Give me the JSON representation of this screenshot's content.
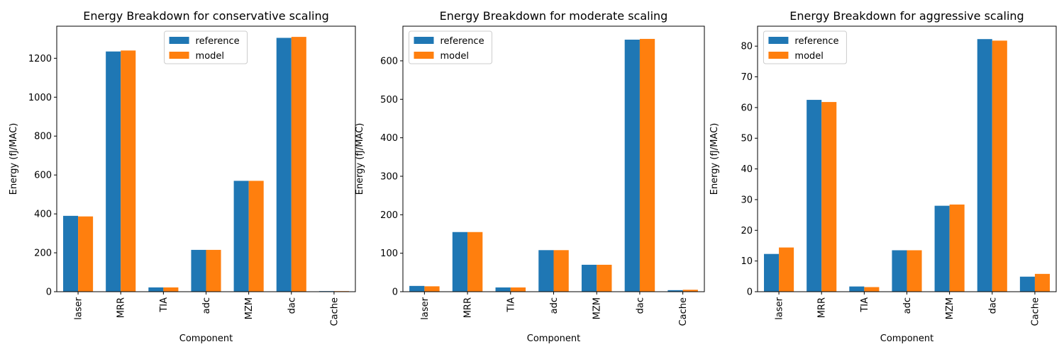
{
  "colors": {
    "reference": "#1f77b4",
    "model": "#ff7f0e"
  },
  "chart_data": [
    {
      "type": "bar",
      "title": "Energy Breakdown for conservative scaling",
      "xlabel": "Component",
      "ylabel": "Energy (fJ/MAC)",
      "categories": [
        "laser",
        "MRR",
        "TIA",
        "adc",
        "MZM",
        "dac",
        "Cache"
      ],
      "series": [
        {
          "name": "reference",
          "values": [
            390,
            1235,
            22,
            215,
            570,
            1305,
            3
          ]
        },
        {
          "name": "model",
          "values": [
            387,
            1240,
            22,
            215,
            570,
            1310,
            3
          ]
        }
      ],
      "ylim": [
        0,
        1365
      ],
      "yticks": [
        0,
        200,
        400,
        600,
        800,
        1000,
        1200
      ],
      "legend": "top-center"
    },
    {
      "type": "bar",
      "title": "Energy Breakdown for moderate scaling",
      "xlabel": "Component",
      "ylabel": "Energy (fJ/MAC)",
      "categories": [
        "laser",
        "MRR",
        "TIA",
        "adc",
        "MZM",
        "dac",
        "Cache"
      ],
      "series": [
        {
          "name": "reference",
          "values": [
            15,
            155,
            11,
            108,
            70,
            655,
            4
          ]
        },
        {
          "name": "model",
          "values": [
            14,
            155,
            11,
            108,
            70,
            657,
            5
          ]
        }
      ],
      "ylim": [
        0,
        690
      ],
      "yticks": [
        0,
        100,
        200,
        300,
        400,
        500,
        600
      ],
      "legend": "top-left"
    },
    {
      "type": "bar",
      "title": "Energy Breakdown for aggressive scaling",
      "xlabel": "Component",
      "ylabel": "Energy (fJ/MAC)",
      "categories": [
        "laser",
        "MRR",
        "TIA",
        "adc",
        "MZM",
        "dac",
        "Cache"
      ],
      "series": [
        {
          "name": "reference",
          "values": [
            12.3,
            62.5,
            1.7,
            13.5,
            28,
            82.3,
            4.9
          ]
        },
        {
          "name": "model",
          "values": [
            14.4,
            61.8,
            1.5,
            13.5,
            28.4,
            81.8,
            5.8
          ]
        }
      ],
      "ylim": [
        0,
        86.5
      ],
      "yticks": [
        0,
        10,
        20,
        30,
        40,
        50,
        60,
        70,
        80
      ],
      "legend": "top-left"
    }
  ]
}
